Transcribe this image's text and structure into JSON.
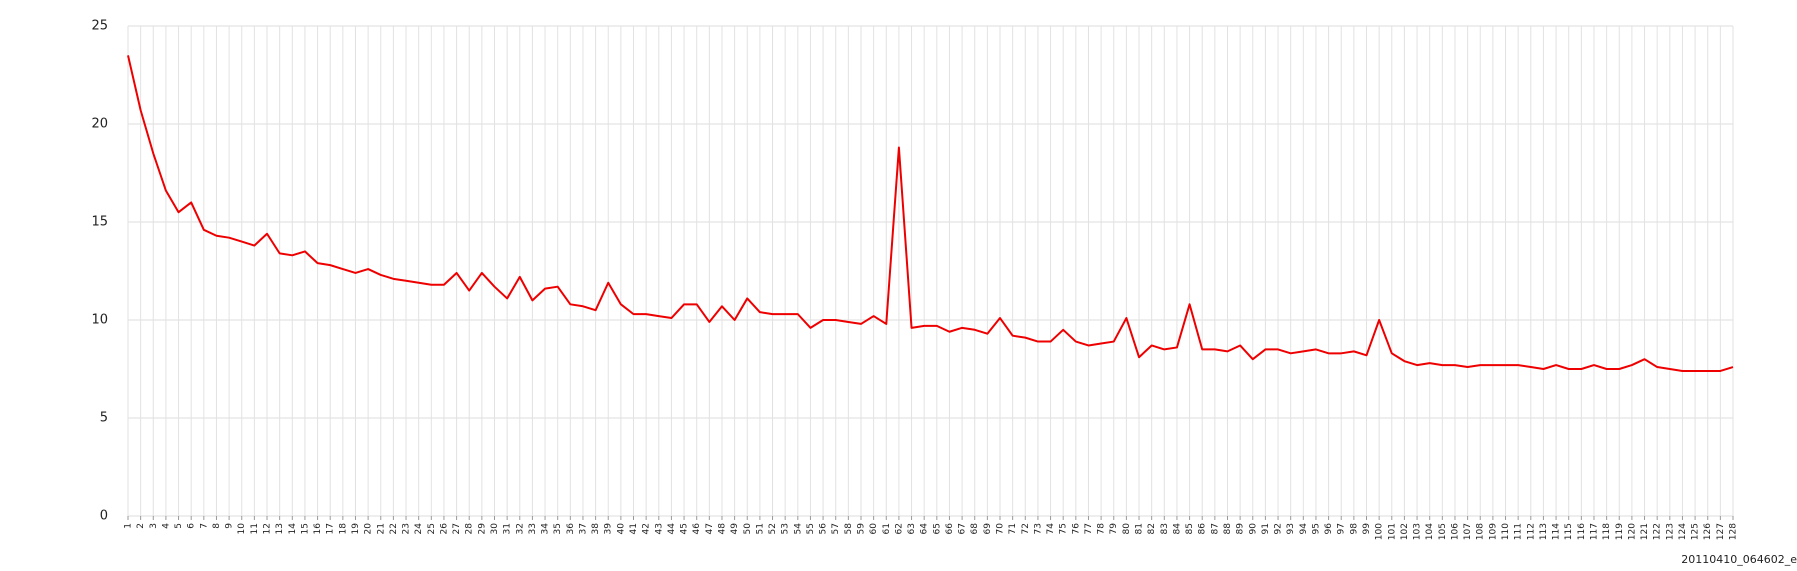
{
  "chart_data": {
    "type": "line",
    "categories": [
      "1",
      "2",
      "3",
      "4",
      "5",
      "6",
      "7",
      "8",
      "9",
      "10",
      "11",
      "12",
      "13",
      "14",
      "15",
      "16",
      "17",
      "18",
      "19",
      "20",
      "21",
      "22",
      "23",
      "24",
      "25",
      "26",
      "27",
      "28",
      "29",
      "30",
      "31",
      "32",
      "33",
      "34",
      "35",
      "36",
      "37",
      "38",
      "39",
      "40",
      "41",
      "42",
      "43",
      "44",
      "45",
      "46",
      "47",
      "48",
      "49",
      "50",
      "51",
      "52",
      "53",
      "54",
      "55",
      "56",
      "57",
      "58",
      "59",
      "60",
      "61",
      "62",
      "63",
      "64",
      "65",
      "66",
      "67",
      "68",
      "69",
      "70",
      "71",
      "72",
      "73",
      "74",
      "75",
      "76",
      "77",
      "78",
      "79",
      "80",
      "81",
      "82",
      "83",
      "84",
      "85",
      "86",
      "87",
      "88",
      "89",
      "90",
      "91",
      "92",
      "93",
      "94",
      "95",
      "96",
      "97",
      "98",
      "99",
      "100",
      "101",
      "102",
      "103",
      "104",
      "105",
      "106",
      "107",
      "108",
      "109",
      "110",
      "111",
      "112",
      "113",
      "114",
      "115",
      "116",
      "117",
      "118",
      "119",
      "120",
      "121",
      "122",
      "123",
      "124",
      "125",
      "126",
      "127",
      "128"
    ],
    "values": [
      23.5,
      20.7,
      18.5,
      16.6,
      15.5,
      16.0,
      14.6,
      14.3,
      14.2,
      14.0,
      13.8,
      14.4,
      13.4,
      13.3,
      13.5,
      12.9,
      12.8,
      12.6,
      12.4,
      12.6,
      12.3,
      12.1,
      12.0,
      11.9,
      11.8,
      11.8,
      12.4,
      11.5,
      12.4,
      11.7,
      11.1,
      12.2,
      11.0,
      11.6,
      11.7,
      10.8,
      10.7,
      10.5,
      11.9,
      10.8,
      10.3,
      10.3,
      10.2,
      10.1,
      10.8,
      10.8,
      9.9,
      10.7,
      10.0,
      11.1,
      10.4,
      10.3,
      10.3,
      10.3,
      9.6,
      10.0,
      10.0,
      9.9,
      9.8,
      10.2,
      9.8,
      18.8,
      9.6,
      9.7,
      9.7,
      9.4,
      9.6,
      9.5,
      9.3,
      10.1,
      9.2,
      9.1,
      8.9,
      8.9,
      9.5,
      8.9,
      8.7,
      8.8,
      8.9,
      10.1,
      8.1,
      8.7,
      8.5,
      8.6,
      10.8,
      8.5,
      8.5,
      8.4,
      8.7,
      8.0,
      8.5,
      8.5,
      8.3,
      8.4,
      8.5,
      8.3,
      8.3,
      8.4,
      8.2,
      10.0,
      8.3,
      7.9,
      7.7,
      7.8,
      7.7,
      7.7,
      7.6,
      7.7,
      7.7,
      7.7,
      7.7,
      7.6,
      7.5,
      7.7,
      7.5,
      7.5,
      7.7,
      7.5,
      7.5,
      7.7,
      8.0,
      7.6,
      7.5,
      7.4,
      7.4,
      7.4,
      7.4,
      7.6
    ],
    "color": "#ee0000",
    "ylim": [
      0,
      25
    ],
    "yticks": [
      0,
      5,
      10,
      15,
      20,
      25
    ],
    "grid": true,
    "caption": "20110410_064602_e"
  }
}
